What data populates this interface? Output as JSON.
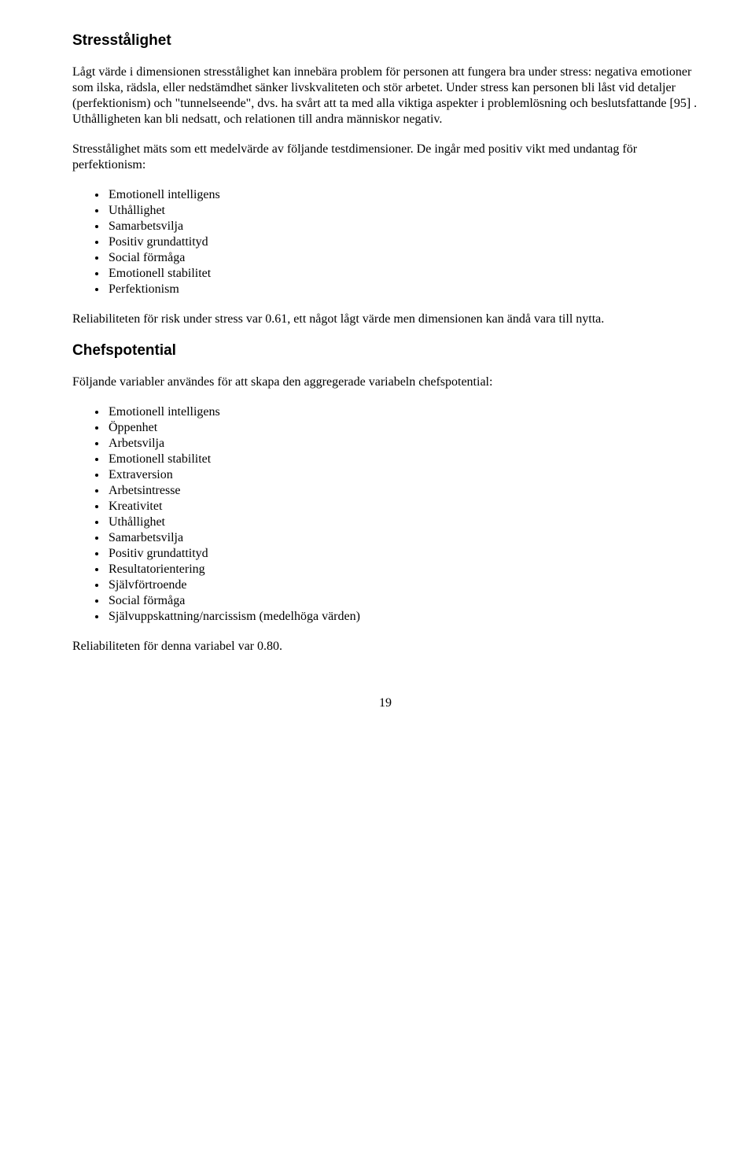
{
  "section1": {
    "heading": "Stresstålighet",
    "para1": "Lågt värde i dimensionen stresstålighet kan innebära problem för personen att fungera bra under stress: negativa emotioner som ilska, rädsla, eller nedstämdhet sänker livskvaliteten och stör arbetet. Under stress kan personen bli låst vid detaljer (perfektionism) och \"tunnelseende\", dvs. ha svårt att ta med alla viktiga aspekter i problemlösning och beslutsfattande  [95] . Uthålligheten kan bli nedsatt, och relationen till andra människor negativ.",
    "para2": "Stresstålighet mäts som ett medelvärde av följande testdimensioner. De ingår med positiv vikt med undantag för perfektionism:",
    "list": [
      "Emotionell intelligens",
      "Uthållighet",
      "Samarbetsvilja",
      "Positiv grundattityd",
      "Social förmåga",
      "Emotionell stabilitet",
      "Perfektionism"
    ],
    "para3": "Reliabiliteten för risk under stress var 0.61, ett något lågt värde men dimensionen kan ändå vara till nytta."
  },
  "section2": {
    "heading": "Chefspotential",
    "para1": "Följande variabler användes för att skapa den aggregerade variabeln chefspotential:",
    "list": [
      "Emotionell intelligens",
      "Öppenhet",
      "Arbetsvilja",
      "Emotionell stabilitet",
      "Extraversion",
      "Arbetsintresse",
      "Kreativitet",
      "Uthållighet",
      "Samarbetsvilja",
      "Positiv grundattityd",
      "Resultatorientering",
      "Självförtroende",
      "Social förmåga",
      "Självuppskattning/narcissism (medelhöga värden)"
    ],
    "para2": "Reliabiliteten för denna variabel var 0.80."
  },
  "page_number": "19"
}
